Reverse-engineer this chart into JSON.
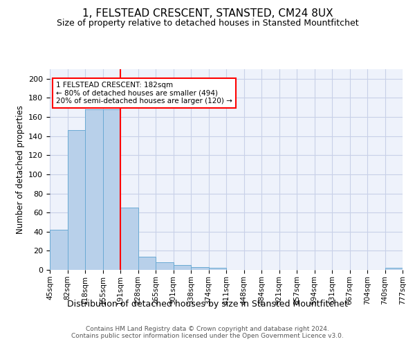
{
  "title": "1, FELSTEAD CRESCENT, STANSTED, CM24 8UX",
  "subtitle": "Size of property relative to detached houses in Stansted Mountfitchet",
  "xlabel": "Distribution of detached houses by size in Stansted Mountfitchet",
  "ylabel": "Number of detached properties",
  "bar_values": [
    42,
    146,
    168,
    168,
    65,
    14,
    8,
    5,
    3,
    2,
    0,
    0,
    0,
    0,
    0,
    0,
    0,
    0,
    0,
    2
  ],
  "tick_labels": [
    "45sqm",
    "82sqm",
    "118sqm",
    "155sqm",
    "191sqm",
    "228sqm",
    "265sqm",
    "301sqm",
    "338sqm",
    "374sqm",
    "411sqm",
    "448sqm",
    "484sqm",
    "521sqm",
    "557sqm",
    "594sqm",
    "631sqm",
    "667sqm",
    "704sqm",
    "740sqm",
    "777sqm"
  ],
  "bar_color": "#b8d0ea",
  "bar_edge_color": "#6aaad4",
  "vline_x": 4,
  "vline_color": "red",
  "annotation_text": "1 FELSTEAD CRESCENT: 182sqm\n← 80% of detached houses are smaller (494)\n20% of semi-detached houses are larger (120) →",
  "annotation_box_color": "white",
  "annotation_box_edge_color": "red",
  "ylim": [
    0,
    210
  ],
  "yticks": [
    0,
    20,
    40,
    60,
    80,
    100,
    120,
    140,
    160,
    180,
    200
  ],
  "footer_text": "Contains HM Land Registry data © Crown copyright and database right 2024.\nContains public sector information licensed under the Open Government Licence v3.0.",
  "background_color": "#eef2fb",
  "grid_color": "#c8d0e8"
}
